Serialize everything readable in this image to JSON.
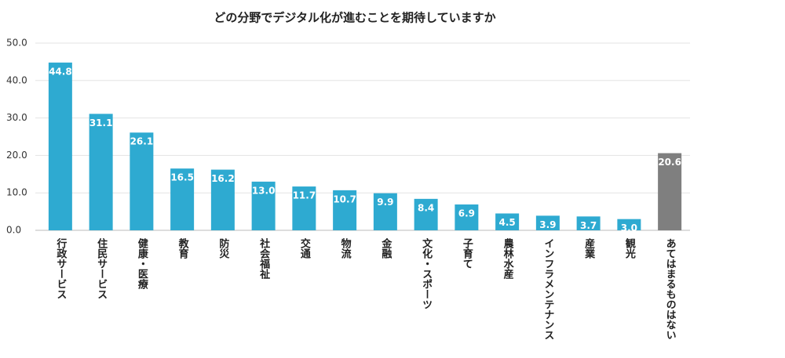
{
  "chart_data": {
    "type": "bar",
    "title": "どの分野でデジタル化が進むことを期待していますか",
    "categories": [
      "行政サービス",
      "住民サービス",
      "健康・医療",
      "教育",
      "防災",
      "社会福祉",
      "交通",
      "物流",
      "金融",
      "文化・スポーツ",
      "子育て",
      "農林水産",
      "インフラメンテナンス",
      "産業",
      "観光",
      "あてはまるものはない"
    ],
    "values": [
      44.8,
      31.1,
      26.1,
      16.5,
      16.2,
      13.0,
      11.7,
      10.7,
      9.9,
      8.4,
      6.9,
      4.5,
      3.9,
      3.7,
      3.0,
      20.6
    ],
    "value_labels": [
      "44.8",
      "31.1",
      "26.1",
      "16.5",
      "16.2",
      "13.0",
      "11.7",
      "10.7",
      "9.9",
      "8.4",
      "6.9",
      "4.5",
      "3.9",
      "3.7",
      "3.0",
      "20.6"
    ],
    "colors": [
      "#2eaad1",
      "#2eaad1",
      "#2eaad1",
      "#2eaad1",
      "#2eaad1",
      "#2eaad1",
      "#2eaad1",
      "#2eaad1",
      "#2eaad1",
      "#2eaad1",
      "#2eaad1",
      "#2eaad1",
      "#2eaad1",
      "#2eaad1",
      "#2eaad1",
      "#7f7f7f"
    ],
    "ylim": [
      0,
      50
    ],
    "yticks": [
      {
        "value": 0,
        "label": "0.0"
      },
      {
        "value": 10,
        "label": "10.0"
      },
      {
        "value": 20,
        "label": "20.0"
      },
      {
        "value": 30,
        "label": "30.0"
      },
      {
        "value": 40,
        "label": "40.0"
      },
      {
        "value": 50,
        "label": "50.0"
      }
    ],
    "grid": true
  }
}
